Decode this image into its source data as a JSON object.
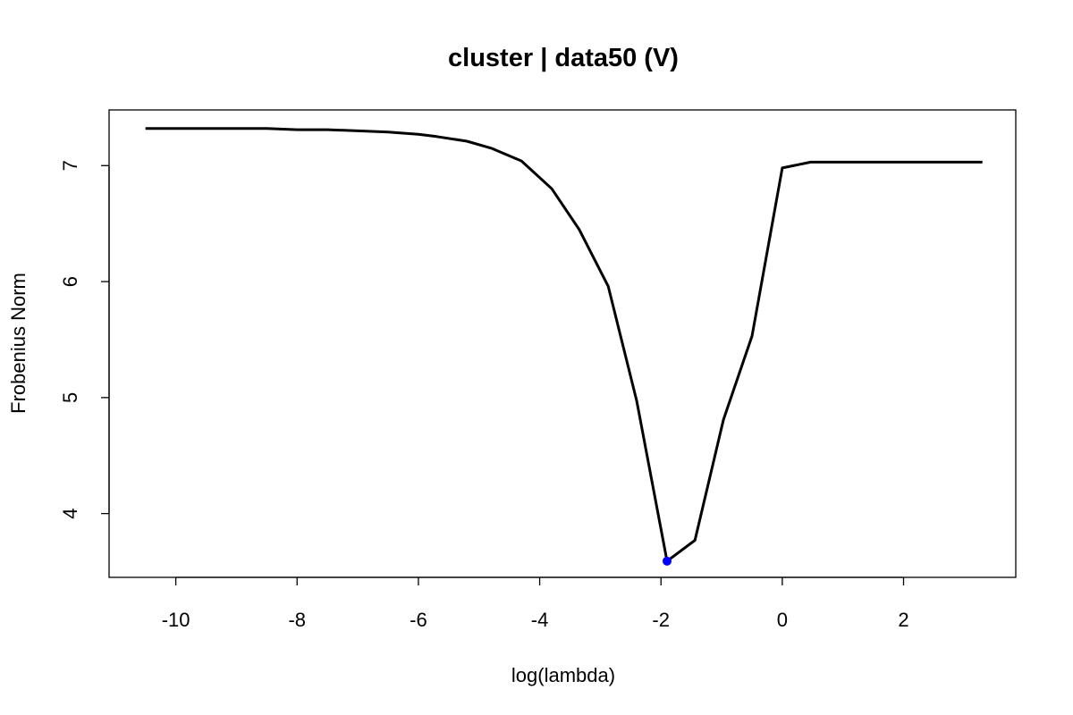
{
  "chart_data": {
    "type": "line",
    "title": "cluster | data50 (V)",
    "xlabel": "log(lambda)",
    "ylabel": "Frobenius Norm",
    "xlim": [
      -11.1,
      3.85
    ],
    "ylim": [
      3.45,
      7.48
    ],
    "xticks": [
      -10,
      -8,
      -6,
      -4,
      -2,
      0,
      2
    ],
    "xtick_labels": [
      "-10",
      "-8",
      "-6",
      "-4",
      "-2",
      "0",
      "2"
    ],
    "yticks": [
      4,
      5,
      6,
      7
    ],
    "ytick_labels": [
      "4",
      "5",
      "6",
      "7"
    ],
    "grid": false,
    "legend": "none",
    "line_color": "#000000",
    "highlight_color": "#0000ff",
    "series": [
      {
        "x": [
          -10.5,
          -8.5,
          -8.0,
          -7.5,
          -7.0,
          -6.5,
          -6.0,
          -5.7,
          -5.2,
          -4.8,
          -4.3,
          -3.8,
          -3.35,
          -2.87,
          -2.4,
          -1.9,
          -1.44,
          -0.97,
          -0.5,
          0.0,
          0.47,
          3.3
        ],
        "values": [
          7.32,
          7.32,
          7.31,
          7.31,
          7.3,
          7.29,
          7.27,
          7.25,
          7.21,
          7.15,
          7.04,
          6.8,
          6.45,
          5.96,
          4.97,
          3.59,
          3.77,
          4.81,
          5.53,
          6.98,
          7.03,
          7.03
        ]
      }
    ],
    "highlight_point": {
      "x": -1.9,
      "y": 3.59
    }
  }
}
